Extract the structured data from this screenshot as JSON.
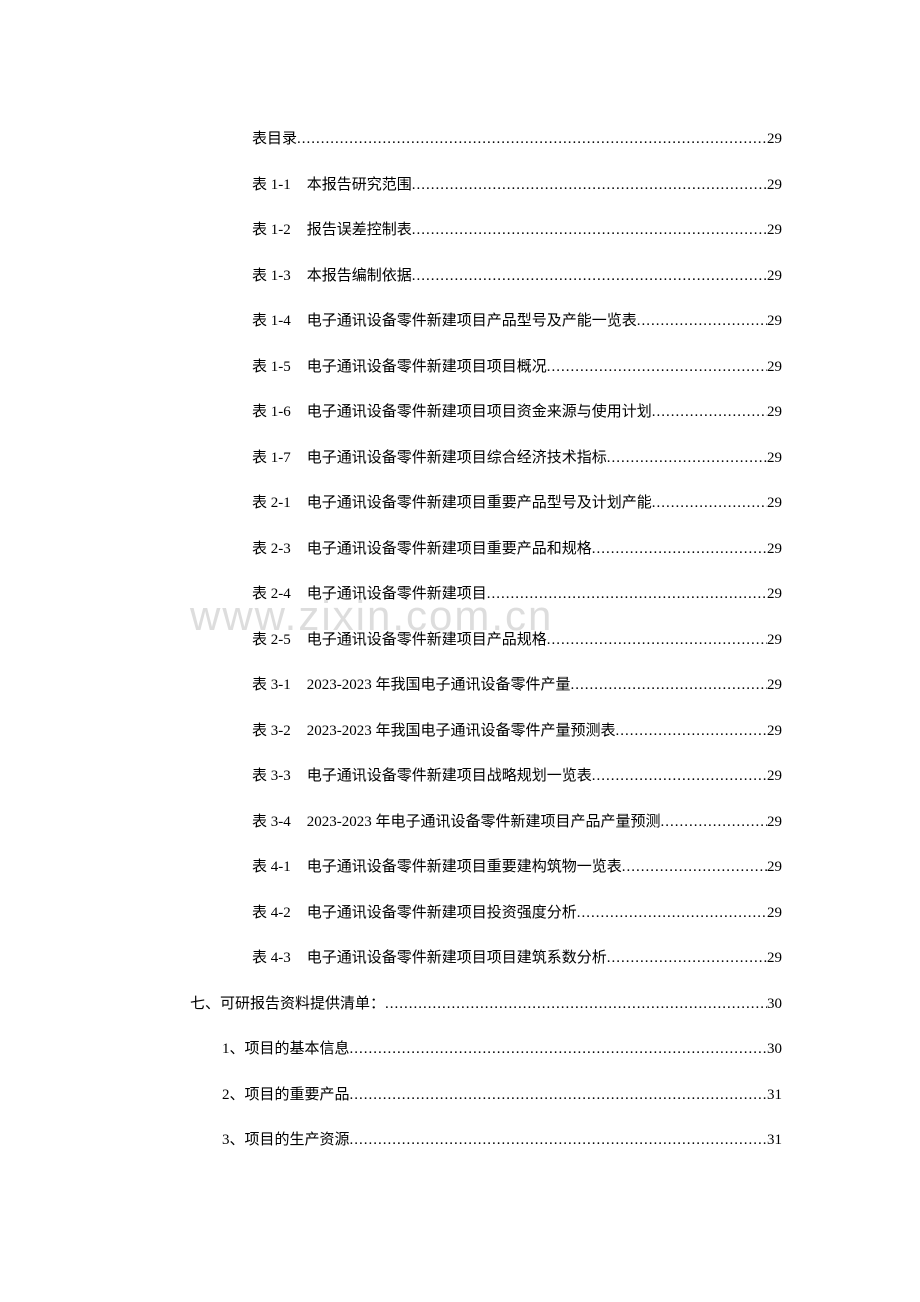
{
  "watermark": {
    "text": "www.zixin.com.cn",
    "color": "rgba(180,180,180,0.45)",
    "fontsize": 42
  },
  "toc": {
    "font_family": "SimSun",
    "fontsize": 15,
    "text_color": "#000000",
    "background_color": "#ffffff",
    "line_spacing": 23,
    "entries": [
      {
        "level": 2,
        "label": "",
        "title": "表目录",
        "page": "29"
      },
      {
        "level": 2,
        "label": "表 1-1",
        "title": "本报告研究范围",
        "page": "29"
      },
      {
        "level": 2,
        "label": "表 1-2",
        "title": "报告误差控制表",
        "page": "29"
      },
      {
        "level": 2,
        "label": "表 1-3",
        "title": "本报告编制依据",
        "page": "29"
      },
      {
        "level": 2,
        "label": "表 1-4",
        "title": "电子通讯设备零件新建项目产品型号及产能一览表",
        "page": "29"
      },
      {
        "level": 2,
        "label": "表 1-5",
        "title": "电子通讯设备零件新建项目项目概况",
        "page": "29"
      },
      {
        "level": 2,
        "label": "表 1-6",
        "title": "电子通讯设备零件新建项目项目资金来源与使用计划",
        "page": "29"
      },
      {
        "level": 2,
        "label": "表 1-7",
        "title": "电子通讯设备零件新建项目综合经济技术指标",
        "page": "29"
      },
      {
        "level": 2,
        "label": "表 2-1",
        "title": "电子通讯设备零件新建项目重要产品型号及计划产能",
        "page": "29"
      },
      {
        "level": 2,
        "label": "表 2-3",
        "title": "电子通讯设备零件新建项目重要产品和规格",
        "page": "29"
      },
      {
        "level": 2,
        "label": "表 2-4",
        "title": "电子通讯设备零件新建项目",
        "page": "29"
      },
      {
        "level": 2,
        "label": "表 2-5",
        "title": "电子通讯设备零件新建项目产品规格",
        "page": "29"
      },
      {
        "level": 2,
        "label": "表 3-1",
        "title": "2023-2023 年我国电子通讯设备零件产量",
        "page": "29"
      },
      {
        "level": 2,
        "label": "表 3-2",
        "title": "2023-2023 年我国电子通讯设备零件产量预测表",
        "page": "29"
      },
      {
        "level": 2,
        "label": "表 3-3",
        "title": "电子通讯设备零件新建项目战略规划一览表",
        "page": "29"
      },
      {
        "level": 2,
        "label": "表 3-4",
        "title": "2023-2023 年电子通讯设备零件新建项目产品产量预测",
        "page": "29"
      },
      {
        "level": 2,
        "label": "表 4-1",
        "title": "电子通讯设备零件新建项目重要建构筑物一览表",
        "page": "29"
      },
      {
        "level": 2,
        "label": "表 4-2",
        "title": "电子通讯设备零件新建项目投资强度分析",
        "page": "29"
      },
      {
        "level": 2,
        "label": "表 4-3",
        "title": "电子通讯设备零件新建项目项目建筑系数分析",
        "page": "29"
      },
      {
        "level": 0,
        "label": "七、",
        "title": "可研报告资料提供清单：",
        "page": "30",
        "nolabel_spacer": true
      },
      {
        "level": 1,
        "label": "1、",
        "title": "项目的基本信息",
        "page": "30",
        "nolabel_spacer": true
      },
      {
        "level": 1,
        "label": "2、",
        "title": "项目的重要产品",
        "page": "31",
        "nolabel_spacer": true
      },
      {
        "level": 1,
        "label": "3、",
        "title": "项目的生产资源",
        "page": "31",
        "nolabel_spacer": true
      }
    ]
  }
}
